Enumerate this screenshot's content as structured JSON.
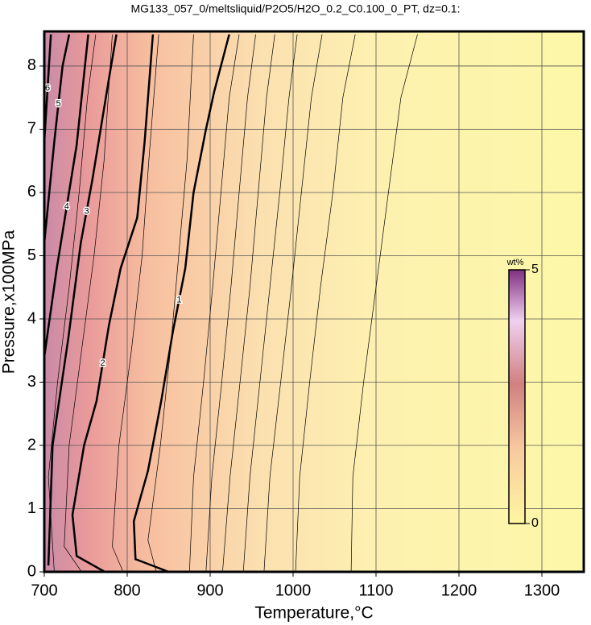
{
  "chart_data": {
    "type": "contour",
    "title": "MG133_057_0/meltsliquid/P2O5/H2O_0.2_C0.100_0_PT, dz=0.1:",
    "xlabel": "Temperature,°C",
    "ylabel": "Pressure,x100MPa",
    "xlim": [
      700,
      1350
    ],
    "ylim": [
      0,
      8.5
    ],
    "xticks": [
      700,
      800,
      900,
      1000,
      1100,
      1200,
      1300
    ],
    "yticks": [
      0,
      1,
      2,
      3,
      4,
      5,
      6,
      7,
      8
    ],
    "grid": true,
    "contours": [
      {
        "level": 1,
        "x": [
          850,
          810,
          808,
          825,
          841,
          855,
          870,
          880,
          895,
          905,
          923
        ],
        "y": [
          0,
          0.2,
          0.8,
          1.6,
          2.7,
          3.8,
          4.8,
          6,
          7,
          7.6,
          8.5
        ]
      },
      {
        "level": 2,
        "x": [
          773,
          739,
          734,
          748,
          763,
          778,
          792,
          812,
          821,
          831
        ],
        "y": [
          0,
          0.25,
          0.9,
          2,
          2.7,
          3.9,
          4.8,
          5.6,
          6.8,
          8.5
        ]
      },
      {
        "level": 3,
        "x": [
          705,
          710,
          729,
          744,
          758,
          778,
          787
        ],
        "y": [
          0.1,
          2,
          3.7,
          5.2,
          6.2,
          7.8,
          8.5
        ]
      },
      {
        "level": 4,
        "x": [
          700,
          715,
          739,
          753
        ],
        "y": [
          3.4,
          4.8,
          6.75,
          8.5
        ]
      },
      {
        "level": 5,
        "x": [
          700,
          712,
          722,
          730
        ],
        "y": [
          5.2,
          6.8,
          8,
          8.5
        ]
      },
      {
        "level": 6,
        "x": [
          700,
          708
        ],
        "y": [
          6.8,
          8.5
        ]
      }
    ],
    "minor_contours": [
      {
        "x": [
          1070,
          1072,
          1085,
          1100,
          1115,
          1130,
          1150
        ],
        "y": [
          0,
          1.5,
          3,
          4.5,
          6,
          7.5,
          8.5
        ]
      },
      {
        "x": [
          1003,
          1008,
          1020,
          1033,
          1048,
          1060,
          1075
        ],
        "y": [
          0,
          1.5,
          3,
          4.5,
          6,
          7.5,
          8.5
        ]
      },
      {
        "x": [
          965,
          972,
          985,
          998,
          1010,
          1022,
          1035
        ],
        "y": [
          0,
          1.5,
          3,
          4.5,
          6,
          7.5,
          8.5
        ]
      },
      {
        "x": [
          940,
          948,
          960,
          972,
          984,
          995,
          1005
        ],
        "y": [
          0,
          1.5,
          3,
          4.5,
          6,
          7.5,
          8.5
        ]
      },
      {
        "x": [
          915,
          924,
          936,
          948,
          958,
          968,
          978
        ],
        "y": [
          0,
          1.5,
          3,
          4.5,
          6,
          7.5,
          8.5
        ]
      },
      {
        "x": [
          895,
          902,
          914,
          925,
          935,
          945,
          955
        ],
        "y": [
          0,
          1.5,
          3,
          4.5,
          6,
          7.5,
          8.5
        ]
      },
      {
        "x": [
          875,
          880,
          892,
          903,
          913,
          923,
          935
        ],
        "y": [
          0,
          1.5,
          3,
          4.5,
          6,
          7.5,
          8.5
        ]
      },
      {
        "x": [
          835,
          825,
          840,
          852,
          862,
          872,
          880
        ],
        "y": [
          0,
          0.5,
          2,
          3.5,
          5,
          6.5,
          8.5
        ]
      },
      {
        "x": [
          795,
          782,
          790,
          805,
          818,
          826,
          838
        ],
        "y": [
          0,
          0.4,
          2,
          3.5,
          5,
          6.5,
          8.5
        ]
      },
      {
        "x": [
          745,
          724,
          730,
          745,
          760,
          772,
          782
        ],
        "y": [
          0,
          0.4,
          2,
          3.5,
          5,
          6.5,
          8.5
        ]
      },
      {
        "x": [
          712,
          705,
          716,
          730,
          742,
          752,
          762
        ],
        "y": [
          0,
          1.5,
          3,
          4.5,
          6,
          7.5,
          8.5
        ]
      }
    ],
    "colorbar": {
      "label": "wt%",
      "lim": [
        0,
        5
      ],
      "ticks": [
        0,
        5
      ]
    }
  }
}
